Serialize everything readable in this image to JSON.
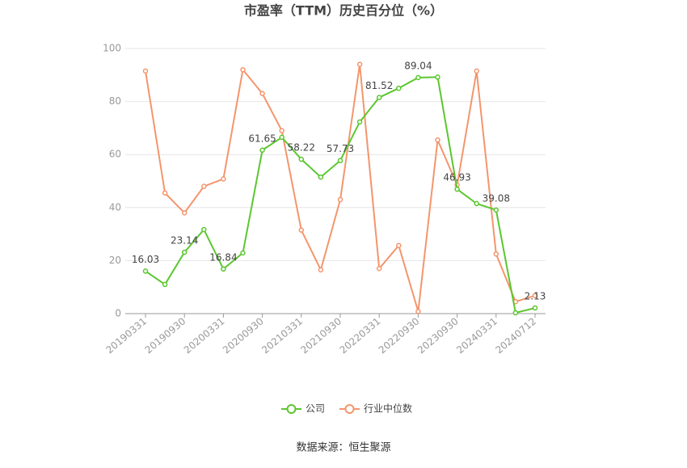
{
  "chart_data": {
    "type": "line",
    "title": "市盈率（TTM）历史百分位（%）",
    "source": "数据来源：恒生聚源",
    "categories": [
      "20190331",
      null,
      "20190930",
      null,
      "20200331",
      null,
      "20200930",
      null,
      "20210331",
      null,
      "20210930",
      null,
      "20220331",
      null,
      "20220930",
      null,
      "20230930",
      null,
      "20240331",
      null,
      "20240712"
    ],
    "series": [
      {
        "name": "公司",
        "color": "#5bc72e",
        "values": [
          16.03,
          11,
          23.14,
          31.7,
          16.84,
          22.9,
          61.65,
          66.5,
          58.22,
          51.5,
          57.73,
          72.3,
          81.52,
          85,
          89.04,
          89.2,
          46.93,
          41.5,
          39.08,
          0.3,
          2.13
        ]
      },
      {
        "name": "行业中位数",
        "color": "#f4956c",
        "values": [
          91.5,
          45.5,
          38,
          48,
          50.8,
          92,
          83,
          69,
          31.5,
          16.5,
          43,
          94,
          17,
          25.7,
          0.8,
          65.5,
          48.5,
          91.5,
          22.5,
          4.5,
          6.8
        ]
      }
    ],
    "ylim": [
      0,
      100
    ],
    "yticks": [
      0,
      20,
      40,
      60,
      80,
      100
    ],
    "grid": true,
    "legend": "bottom"
  }
}
